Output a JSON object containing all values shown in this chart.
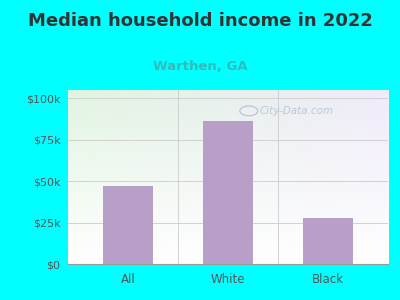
{
  "title": "Median household income in 2022",
  "subtitle": "Warthen, GA",
  "categories": [
    "All",
    "White",
    "Black"
  ],
  "values": [
    47000,
    86000,
    28000
  ],
  "bar_color": "#b89fc8",
  "title_color": "#333333",
  "subtitle_color": "#33bbbb",
  "bg_color": "#00ffff",
  "plot_bg_topleft": "#e8f5e8",
  "plot_bg_right": "#e8f0f8",
  "plot_bg_bottom": "#f5fff5",
  "yticks": [
    0,
    25000,
    50000,
    75000,
    100000
  ],
  "ytick_labels": [
    "$0",
    "$25k",
    "$50k",
    "$75k",
    "$100k"
  ],
  "ylim": [
    0,
    105000
  ],
  "watermark": "City-Data.com",
  "title_fontsize": 13,
  "subtitle_fontsize": 9.5,
  "tick_fontsize": 8,
  "axis_label_color": "#555555"
}
